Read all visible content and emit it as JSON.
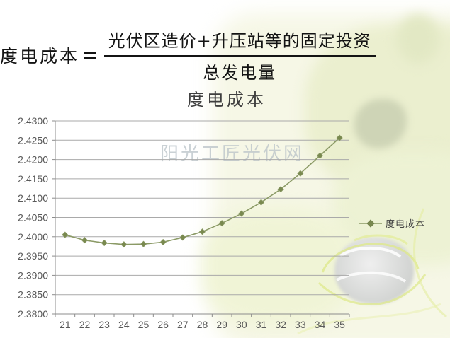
{
  "formula": {
    "lhs": "度电成本",
    "equals": "=",
    "numerator": "光伏区造价+升压站等的固定投资",
    "denominator": "总发电量"
  },
  "watermark": "阳光工匠光伏网",
  "chart_data": {
    "type": "line",
    "title": "度电成本",
    "x": [
      21,
      22,
      23,
      24,
      25,
      26,
      27,
      28,
      29,
      30,
      31,
      32,
      33,
      34,
      35
    ],
    "series": [
      {
        "name": "度电成本",
        "values": [
          2.4005,
          2.3991,
          2.3984,
          2.398,
          2.3981,
          2.3986,
          2.3998,
          2.4013,
          2.4035,
          2.406,
          2.4089,
          2.4123,
          2.4164,
          2.421,
          2.4256
        ]
      }
    ],
    "xlabel": "",
    "ylabel": "",
    "ylim": [
      2.38,
      2.43
    ],
    "ytick_step": 0.005,
    "ytick_decimals": 4,
    "grid": true,
    "legend_position": "right",
    "marker": "diamond",
    "colors": {
      "series": "#8b9a66",
      "marker": "#79894f",
      "grid": "#a9a9a9",
      "axis": "#8c8c8c",
      "tick_label": "#595959",
      "title": "#3f3f3f",
      "watermark": "#b9c2c8"
    }
  }
}
